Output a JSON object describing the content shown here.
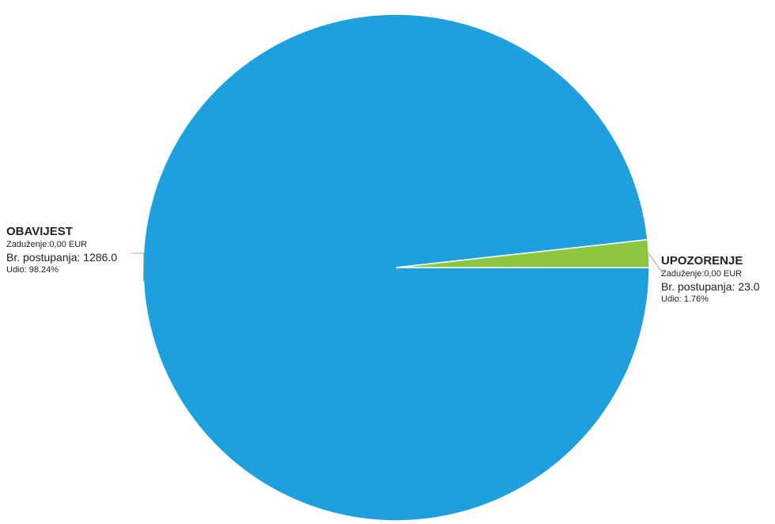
{
  "chart_data": {
    "type": "pie",
    "slices": [
      {
        "name": "OBAVIJEST",
        "value": 1286.0,
        "debt_label": "Zaduženje:0,00 EUR",
        "count_label": "Br. postupanja: 1286.0",
        "share_label": "Udio: 98.24%",
        "color": "#1e9fde"
      },
      {
        "name": "UPOZORENJE",
        "value": 23.0,
        "debt_label": "Zaduženje:0,00 EUR",
        "count_label": "Br. postupanja: 23.0",
        "share_label": "Udio: 1.76%",
        "color": "#8dc63f"
      }
    ],
    "start_angle_deg": 0,
    "direction": "clockwise",
    "legend": "none"
  }
}
